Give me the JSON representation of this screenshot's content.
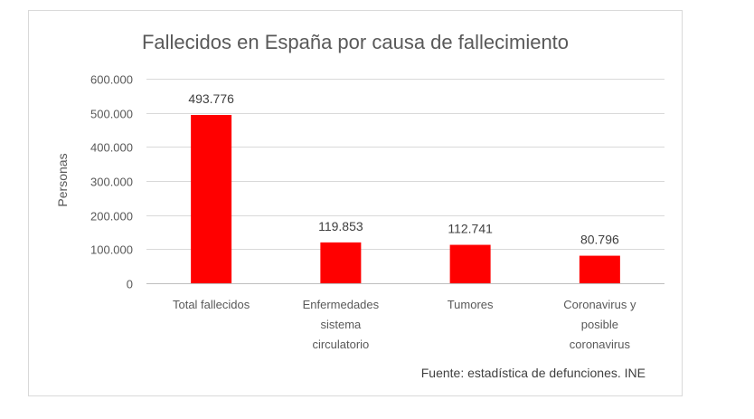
{
  "chart_data": {
    "type": "bar",
    "title": "Fallecidos en España por causa de fallecimiento",
    "ylabel": "Personas",
    "xlabel": "",
    "categories": [
      [
        "Total fallecidos"
      ],
      [
        "Enfermedades",
        "sistema",
        "circulatorio"
      ],
      [
        "Tumores"
      ],
      [
        "Coronavirus y",
        "posible",
        "coronavirus"
      ]
    ],
    "values": [
      493776,
      119853,
      112741,
      80796
    ],
    "value_labels": [
      "493.776",
      "119.853",
      "112.741",
      "80.796"
    ],
    "ylim": [
      0,
      600000
    ],
    "yticks": [
      0,
      100000,
      200000,
      300000,
      400000,
      500000,
      600000
    ],
    "ytick_labels": [
      "0",
      "100.000",
      "200.000",
      "300.000",
      "400.000",
      "500.000",
      "600.000"
    ],
    "bar_color": "#ff0000",
    "grid": true,
    "legend": "none",
    "source_note": "Fuente: estadística de defunciones. INE"
  }
}
